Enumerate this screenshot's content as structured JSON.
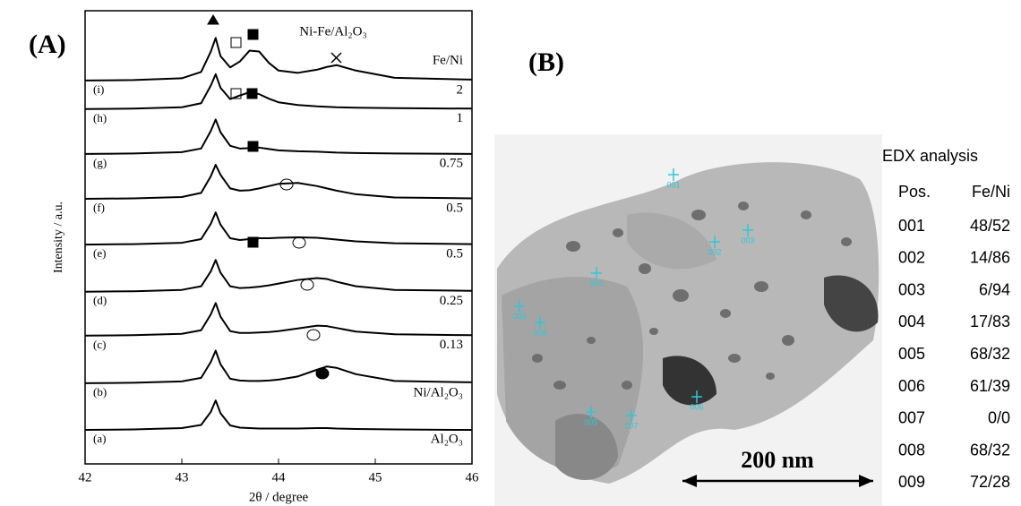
{
  "chart_data": {
    "type": "line",
    "annotation": "Ni-Fe/Al₂O₃",
    "sample_header": "Fe/Ni",
    "x_label": "2θ / degree",
    "y_label": "Intensity / a.u.",
    "xlim": [
      42,
      46
    ],
    "xticks": [
      42,
      43,
      44,
      45,
      46
    ],
    "ylim": [
      0,
      100
    ],
    "color": "#000000",
    "x": [
      42,
      42.5,
      43,
      43.2,
      43.3,
      43.35,
      43.4,
      43.5,
      43.6,
      43.7,
      43.8,
      43.9,
      44,
      44.2,
      44.4,
      44.5,
      44.6,
      44.8,
      45.2,
      46
    ],
    "series": [
      {
        "name": "(a)",
        "sample": "Al₂O₃",
        "values": [
          7.5,
          7.6,
          7.9,
          8.6,
          11.5,
          14,
          11.2,
          8.5,
          8,
          7.9,
          7.8,
          7.8,
          7.8,
          7.8,
          7.9,
          7.9,
          7.8,
          7.7,
          7.6,
          7.5
        ]
      },
      {
        "name": "(b)",
        "sample": "Ni/Al₂O₃",
        "values": [
          17.8,
          17.9,
          18.2,
          19,
          22.5,
          25,
          22,
          18.8,
          18.4,
          18.3,
          18.3,
          18.4,
          18.6,
          19.3,
          20.8,
          21.5,
          21.2,
          19.8,
          18.3,
          18
        ]
      },
      {
        "name": "(c)",
        "sample": "0.13",
        "values": [
          28.3,
          28.4,
          28.7,
          29.5,
          33,
          35.5,
          32.5,
          29.3,
          28.9,
          28.9,
          29,
          29.1,
          29.3,
          29.9,
          30.5,
          30.4,
          30,
          29.2,
          28.6,
          28.4
        ]
      },
      {
        "name": "(d)",
        "sample": "0.25",
        "values": [
          38,
          38.1,
          38.4,
          39.2,
          42.5,
          45,
          42.2,
          39.2,
          38.8,
          38.9,
          39.1,
          39.4,
          39.8,
          40.6,
          41,
          40.8,
          40.2,
          39.2,
          38.4,
          38.2
        ]
      },
      {
        "name": "(e)",
        "sample": "0.5",
        "values": [
          48.4,
          48.5,
          48.8,
          49.6,
          53,
          55.5,
          52.8,
          49.8,
          49.4,
          49.6,
          49.8,
          49.8,
          49.9,
          50,
          49.9,
          49.7,
          49.5,
          49.1,
          48.7,
          48.5
        ]
      },
      {
        "name": "(f)",
        "sample": "0.5",
        "values": [
          58.5,
          58.6,
          58.9,
          59.8,
          63.5,
          66,
          63.8,
          60.8,
          60.3,
          60.4,
          60.8,
          61.3,
          61.8,
          62,
          61.3,
          60.8,
          60.3,
          59.5,
          58.8,
          58.6
        ]
      },
      {
        "name": "(g)",
        "sample": "0.75",
        "values": [
          68.4,
          68.5,
          68.8,
          69.6,
          73.5,
          76,
          73.2,
          70.2,
          69.6,
          69.7,
          69.8,
          69.5,
          69.2,
          69,
          68.9,
          68.8,
          68.7,
          68.6,
          68.5,
          68.4
        ]
      },
      {
        "name": "(h)",
        "sample": "1",
        "values": [
          78.3,
          78.4,
          78.7,
          79.6,
          83.5,
          86,
          83,
          80.5,
          81.3,
          82,
          81.6,
          80.6,
          79.8,
          79.2,
          78.9,
          78.8,
          78.7,
          78.6,
          78.5,
          78.4
        ]
      },
      {
        "name": "(i)",
        "sample": "2",
        "values": [
          84.6,
          84.7,
          85.1,
          86.5,
          91,
          94,
          90,
          87.5,
          88.8,
          91.2,
          91,
          88.5,
          86.8,
          86.3,
          87,
          87.6,
          88,
          86.8,
          85.2,
          84.8
        ]
      }
    ]
  },
  "panel_labels": [
    "(A)",
    "(B)"
  ],
  "tem": {
    "spots": [
      "001",
      "002",
      "003",
      "004",
      "005",
      "006",
      "007",
      "008",
      "009"
    ],
    "scale_bar": "200 nm"
  },
  "edx": {
    "title": "EDX analysis",
    "columns": [
      "Pos.",
      "Fe/Ni"
    ],
    "rows": [
      [
        "001",
        "48/52"
      ],
      [
        "002",
        "14/86"
      ],
      [
        "003",
        "6/94"
      ],
      [
        "004",
        "17/83"
      ],
      [
        "005",
        "68/32"
      ],
      [
        "006",
        "61/39"
      ],
      [
        "007",
        "0/0"
      ],
      [
        "008",
        "68/32"
      ],
      [
        "009",
        "72/28"
      ]
    ]
  }
}
